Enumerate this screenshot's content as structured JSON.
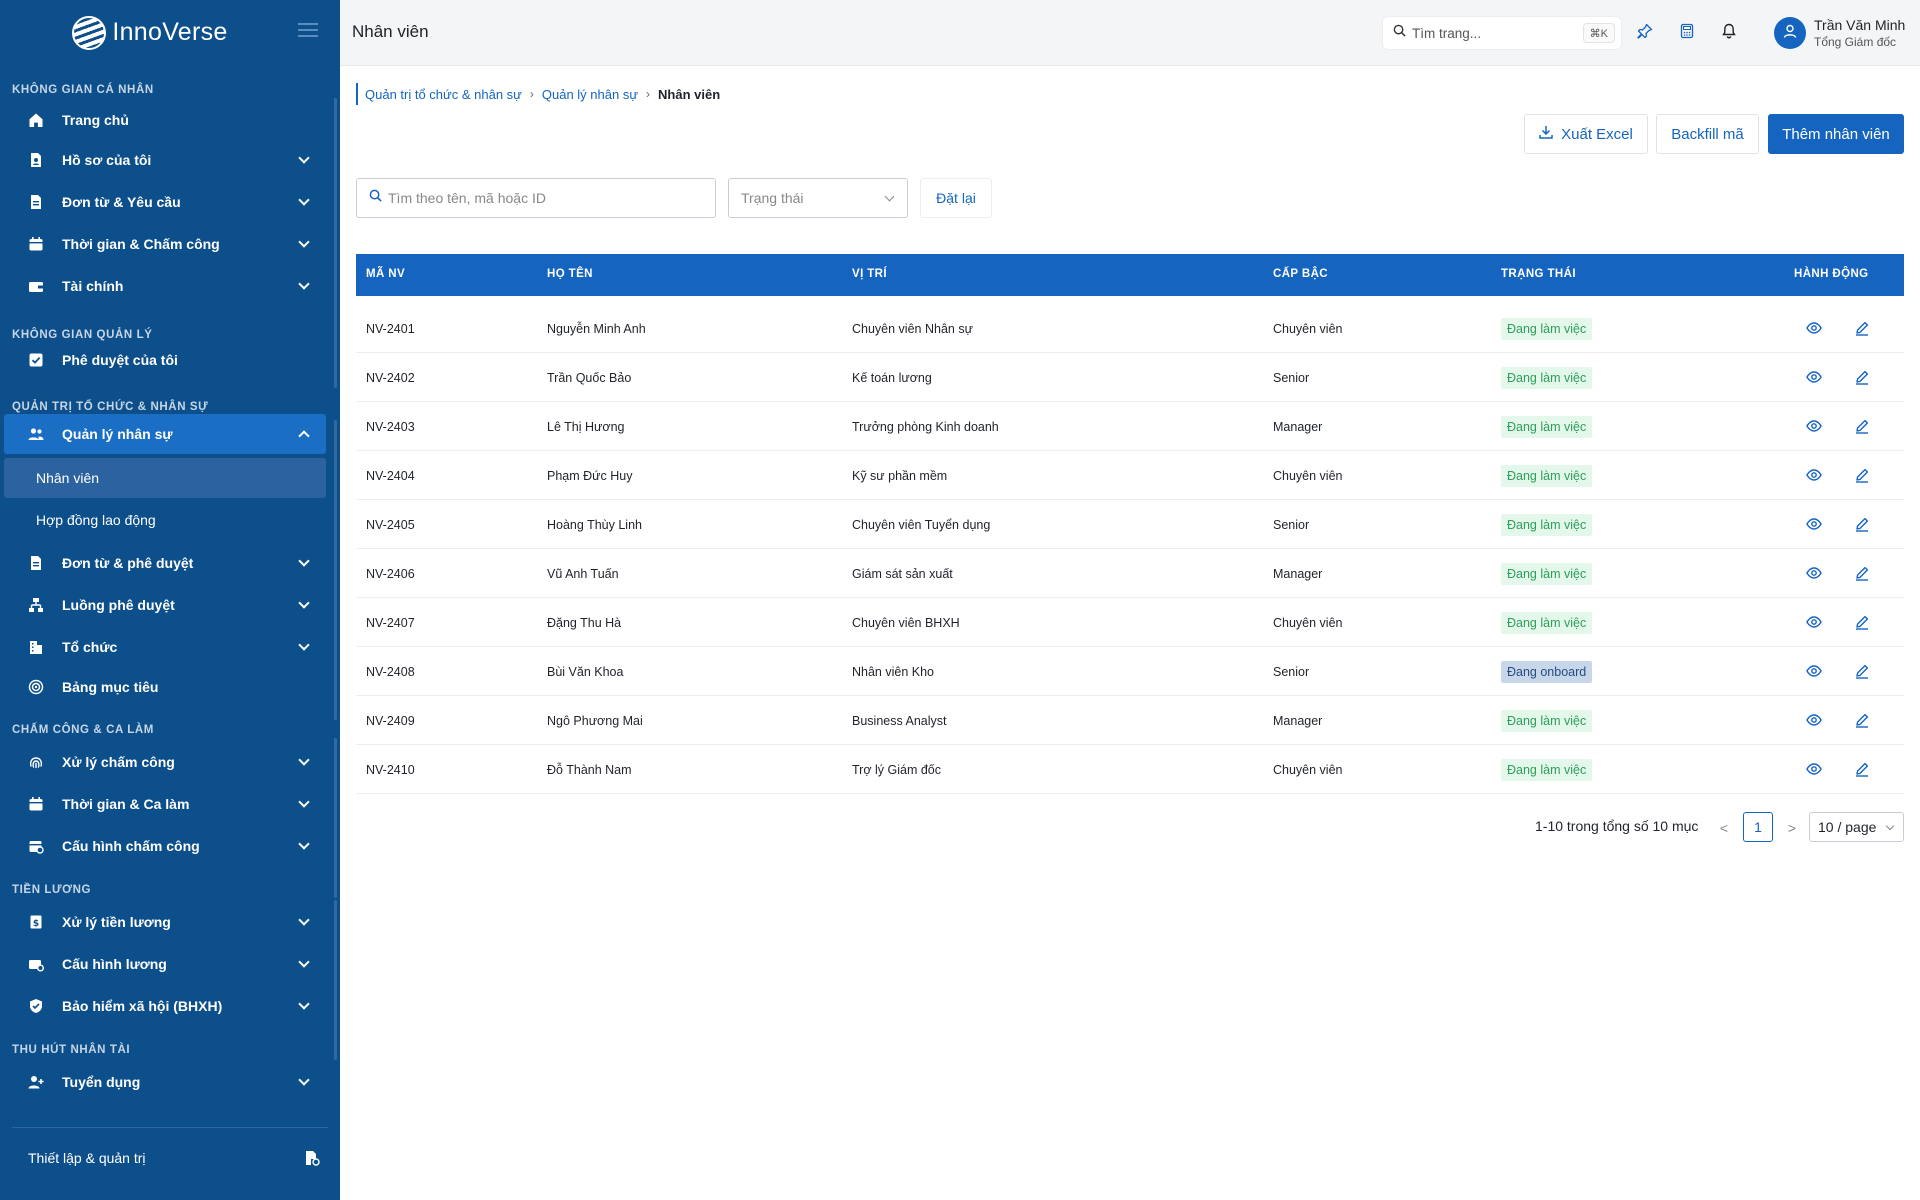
{
  "brand": {
    "name": "InnoVerse"
  },
  "topbar": {
    "page_title": "Nhân viên",
    "search_placeholder": "Tìm trang...",
    "search_shortcut": "⌘K",
    "user": {
      "name": "Trần Văn Minh",
      "role": "Tổng Giám đốc"
    }
  },
  "sidebar": {
    "sections": [
      {
        "title": "Không gian cá nhân"
      },
      {
        "title": "Không gian quản lý"
      },
      {
        "title": "Quản trị tổ chức & nhân sự"
      },
      {
        "title": "Chấm công & ca làm"
      },
      {
        "title": "Tiền lương"
      },
      {
        "title": "Thu hút nhân tài"
      }
    ],
    "items": [
      {
        "label": "Trang chủ",
        "icon": "home-icon"
      },
      {
        "label": "Hồ sơ của tôi",
        "icon": "profile-icon"
      },
      {
        "label": "Đơn từ & Yêu cầu",
        "icon": "document-icon"
      },
      {
        "label": "Thời gian & Chấm công",
        "icon": "calendar-icon"
      },
      {
        "label": "Tài chính",
        "icon": "wallet-icon"
      },
      {
        "label": "Phê duyệt của tôi",
        "icon": "checkbox-icon"
      },
      {
        "label": "Quản lý nhân sự",
        "icon": "users-icon"
      },
      {
        "label": "Đơn từ & phê duyệt",
        "icon": "document-icon"
      },
      {
        "label": "Luồng phê duyệt",
        "icon": "flow-icon"
      },
      {
        "label": "Tổ chức",
        "icon": "building-icon"
      },
      {
        "label": "Bảng mục tiêu",
        "icon": "target-icon"
      },
      {
        "label": "Xử lý chấm công",
        "icon": "fingerprint-icon"
      },
      {
        "label": "Thời gian & Ca làm",
        "icon": "calendar-icon"
      },
      {
        "label": "Cấu hình chấm công",
        "icon": "calendar-gear-icon"
      },
      {
        "label": "Xử lý tiền lương",
        "icon": "payroll-icon"
      },
      {
        "label": "Cấu hình lương",
        "icon": "wallet-gear-icon"
      },
      {
        "label": "Bảo hiểm xã hội (BHXH)",
        "icon": "shield-icon"
      },
      {
        "label": "Tuyển dụng",
        "icon": "user-add-icon"
      }
    ],
    "sub_items": [
      {
        "label": "Nhân viên",
        "active": true
      },
      {
        "label": "Hợp đồng lao động",
        "active": false
      }
    ],
    "footer": {
      "label": "Thiết lập & quản trị"
    }
  },
  "breadcrumb": {
    "items": [
      "Quản trị tổ chức & nhân sự",
      "Quản lý nhân sự"
    ],
    "current": "Nhân viên",
    "separator": "›"
  },
  "actions": {
    "export_label": "Xuất Excel",
    "backfill_label": "Backfill mã",
    "add_label": "Thêm nhân viên"
  },
  "filters": {
    "search_placeholder": "Tìm theo tên, mã hoặc ID",
    "status_placeholder": "Trạng thái",
    "reset_label": "Đặt lại"
  },
  "table": {
    "columns": [
      "Mã NV",
      "Họ tên",
      "Vị trí",
      "Cấp bậc",
      "Trạng thái",
      "Hành động"
    ],
    "rows": [
      {
        "id": "NV-2401",
        "name": "Nguyễn Minh Anh",
        "position": "Chuyên viên Nhân sự",
        "level": "Chuyên viên",
        "status": "Đang làm việc",
        "status_type": "working"
      },
      {
        "id": "NV-2402",
        "name": "Trần Quốc Bảo",
        "position": "Kế toán lương",
        "level": "Senior",
        "status": "Đang làm việc",
        "status_type": "working"
      },
      {
        "id": "NV-2403",
        "name": "Lê Thị Hương",
        "position": "Trưởng phòng Kinh doanh",
        "level": "Manager",
        "status": "Đang làm việc",
        "status_type": "working"
      },
      {
        "id": "NV-2404",
        "name": "Phạm Đức Huy",
        "position": "Kỹ sư phần mềm",
        "level": "Chuyên viên",
        "status": "Đang làm việc",
        "status_type": "working"
      },
      {
        "id": "NV-2405",
        "name": "Hoàng Thùy Linh",
        "position": "Chuyên viên Tuyển dụng",
        "level": "Senior",
        "status": "Đang làm việc",
        "status_type": "working"
      },
      {
        "id": "NV-2406",
        "name": "Vũ Anh Tuấn",
        "position": "Giám sát sản xuất",
        "level": "Manager",
        "status": "Đang làm việc",
        "status_type": "working"
      },
      {
        "id": "NV-2407",
        "name": "Đặng Thu Hà",
        "position": "Chuyên viên BHXH",
        "level": "Chuyên viên",
        "status": "Đang làm việc",
        "status_type": "working"
      },
      {
        "id": "NV-2408",
        "name": "Bùi Văn Khoa",
        "position": "Nhân viên Kho",
        "level": "Senior",
        "status": "Đang onboard",
        "status_type": "onboard"
      },
      {
        "id": "NV-2409",
        "name": "Ngô Phương Mai",
        "position": "Business Analyst",
        "level": "Manager",
        "status": "Đang làm việc",
        "status_type": "working"
      },
      {
        "id": "NV-2410",
        "name": "Đỗ Thành Nam",
        "position": "Trợ lý Giám đốc",
        "level": "Chuyên viên",
        "status": "Đang làm việc",
        "status_type": "working"
      }
    ]
  },
  "pagination": {
    "total_text": "1-10 trong tổng số 10 mục",
    "prev": "<",
    "next": ">",
    "current_page": "1",
    "page_size": "10 / page"
  },
  "colors": {
    "sidebar_bg": "#0d4f8b",
    "primary": "#1565c0",
    "status_working_bg": "#e3f7ea",
    "status_working_text": "#2e9e5b",
    "status_onboard_bg": "#c7d6e8"
  }
}
